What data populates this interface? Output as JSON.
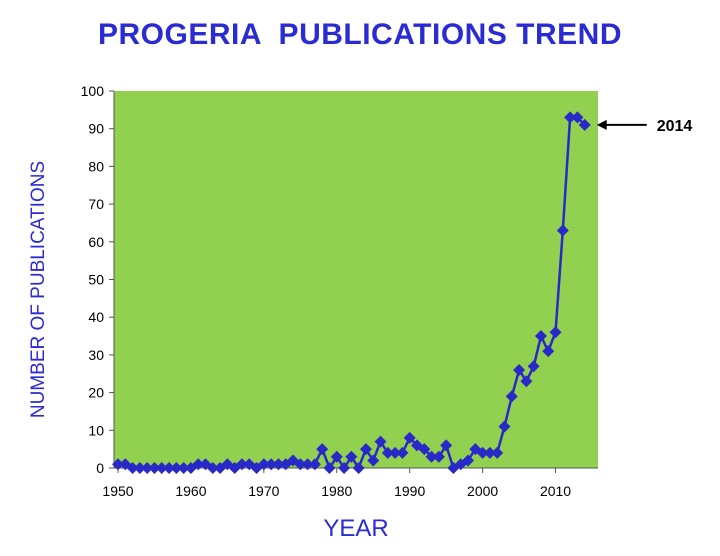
{
  "chart_data": {
    "type": "line",
    "title": "PROGERIA  PUBLICATIONS TREND",
    "xlabel": "YEAR",
    "ylabel": "NUMBER OF PUBLICATIONS",
    "xlim": [
      1950,
      2015
    ],
    "ylim": [
      0,
      100
    ],
    "x_ticks": [
      1950,
      1960,
      1970,
      1980,
      1990,
      2000,
      2010
    ],
    "y_ticks": [
      0,
      10,
      20,
      30,
      40,
      50,
      60,
      70,
      80,
      90,
      100
    ],
    "grid": false,
    "legend": "none",
    "annotation": {
      "label": "2014",
      "x": 2014,
      "y": 91
    },
    "colors": {
      "plot_bg": "#92d050",
      "series": "#2929c8",
      "title": "#2b2bd4"
    },
    "series": [
      {
        "x": [
          1950,
          1951,
          1952,
          1953,
          1954,
          1955,
          1956,
          1957,
          1958,
          1959,
          1960,
          1961,
          1962,
          1963,
          1964,
          1965,
          1966,
          1967,
          1968,
          1969,
          1970,
          1971,
          1972,
          1973,
          1974,
          1975,
          1976,
          1977,
          1978,
          1979,
          1980,
          1981,
          1982,
          1983,
          1984,
          1985,
          1986,
          1987,
          1988,
          1989,
          1990,
          1991,
          1992,
          1993,
          1994,
          1995,
          1996,
          1997,
          1998,
          1999,
          2000,
          2001,
          2002,
          2003,
          2004,
          2005,
          2006,
          2007,
          2008,
          2009,
          2010,
          2011,
          2012,
          2013,
          2014
        ],
        "values": [
          1,
          1,
          0,
          0,
          0,
          0,
          0,
          0,
          0,
          0,
          0,
          1,
          1,
          0,
          0,
          1,
          0,
          1,
          1,
          0,
          1,
          1,
          1,
          1,
          2,
          1,
          1,
          1,
          5,
          0,
          3,
          0,
          3,
          0,
          5,
          2,
          7,
          4,
          4,
          4,
          8,
          6,
          5,
          3,
          3,
          6,
          0,
          1,
          2,
          5,
          4,
          4,
          4,
          11,
          19,
          26,
          23,
          27,
          35,
          31,
          36,
          63,
          93,
          93,
          91
        ]
      }
    ]
  }
}
